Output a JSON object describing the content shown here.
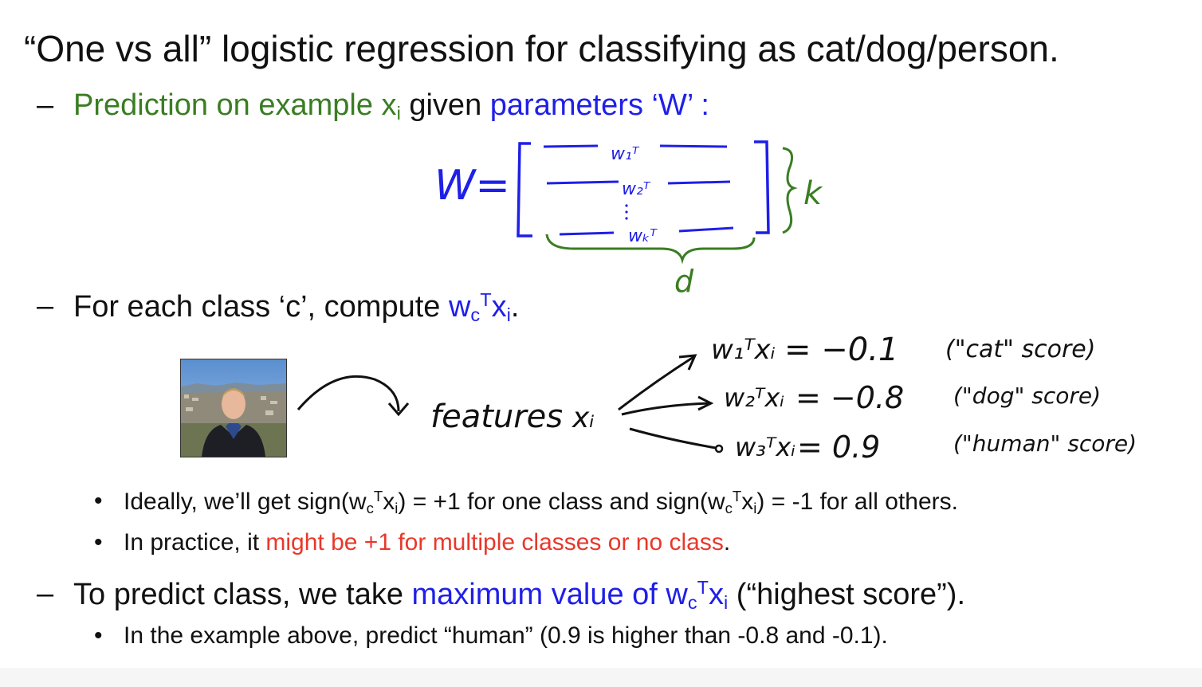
{
  "slide": {
    "title": "“One vs all” logistic regression for classifying as cat/dog/person.",
    "dash": "–",
    "bullet": "•",
    "line1": {
      "green": "Prediction on example x",
      "green_sub": "i",
      "black": " given ",
      "blue": "parameters ‘W’ :"
    },
    "line2": {
      "black": "For each class ‘c’, compute ",
      "blue_w": "w",
      "sub_c": "c",
      "sup_T": "T",
      "blue_x": "x",
      "sub_i": "i",
      "end": "."
    },
    "bullet1": {
      "a": "Ideally, we’ll get sign(w",
      "sub_c": "c",
      "sup_T": "T",
      "b": "x",
      "sub_i": "i",
      "c": ") = +1 for one class and sign(w",
      "d": "x",
      "e": ") = -1 for all others."
    },
    "bullet2": {
      "black": "In practice, it ",
      "red": "might be +1 for multiple classes or no class",
      "end": "."
    },
    "line3": {
      "black": "To predict class, we take ",
      "blue": "maximum value of w",
      "sub_c": "c",
      "sup_T": "T",
      "blue_x": "x",
      "sub_i": "i",
      "end": " (“highest score”)."
    },
    "bullet3": "In the example above, predict “human” (0.9 is higher than -0.8 and -0.1)."
  },
  "handwriting": {
    "matrix_label": "W=",
    "row1": "w₁ᵀ",
    "row2": "w₂ᵀ",
    "rowK": "wₖᵀ",
    "brace_k": "k",
    "brace_d": "d",
    "features": "features",
    "features_x": "xᵢ",
    "s1_lhs": "w₁ᵀxᵢ",
    "s1_eq": "= −0.1",
    "s1_note": "(\"cat\" score)",
    "s2_lhs": "w₂ᵀxᵢ",
    "s2_eq": "= −0.8",
    "s2_note": "(\"dog\" score)",
    "s3_lhs": "w₃ᵀxᵢ",
    "s3_eq": "= 0.9",
    "s3_note": "(\"human\" score)"
  },
  "colors": {
    "green": "#3a7d22",
    "blue": "#1f1fe8",
    "red": "#e8382b",
    "ink": "#111111"
  }
}
